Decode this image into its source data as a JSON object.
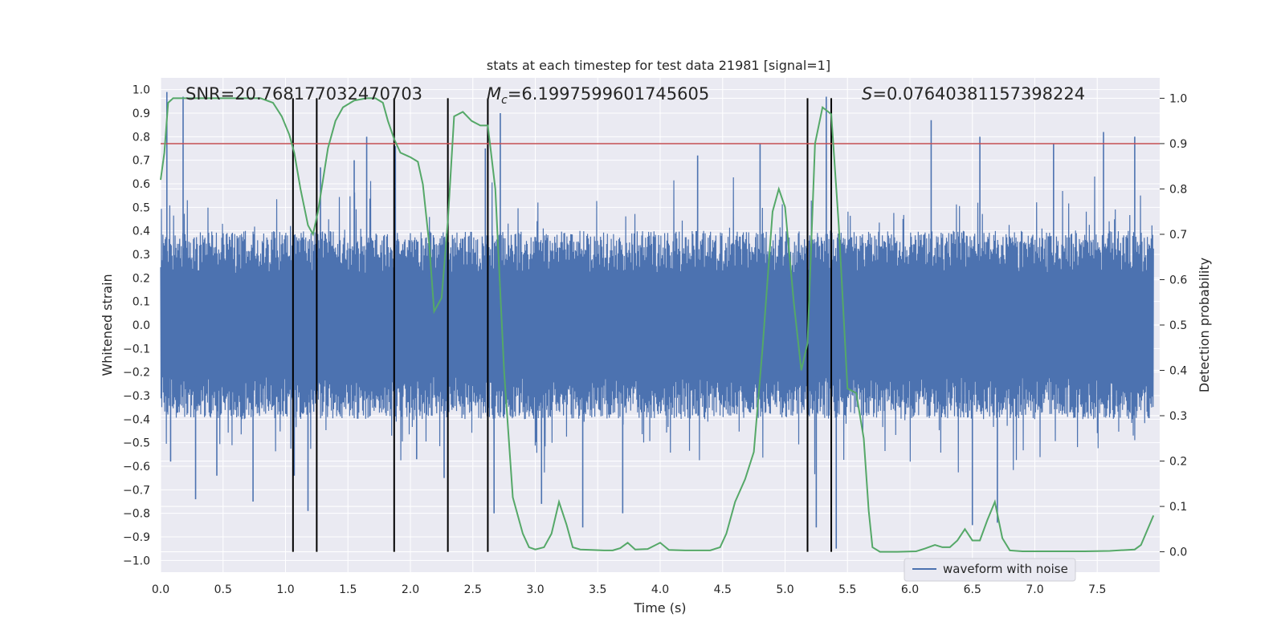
{
  "chart_data": {
    "type": "line",
    "title": "stats at each timestep for test data 21981 [signal=1]",
    "xlabel": "Time (s)",
    "ylabel": "Whitened strain",
    "y2label": "Detection probability",
    "xlim": [
      0,
      8
    ],
    "ylim": [
      -1.05,
      1.05
    ],
    "y2lim": [
      -0.045,
      1.045
    ],
    "xticks": [
      "0.0",
      "0.5",
      "1.0",
      "1.5",
      "2.0",
      "2.5",
      "3.0",
      "3.5",
      "4.0",
      "4.5",
      "5.0",
      "5.5",
      "6.0",
      "6.5",
      "7.0",
      "7.5"
    ],
    "yticks": [
      "1.0",
      "0.9",
      "0.8",
      "0.7",
      "0.6",
      "0.5",
      "0.4",
      "0.3",
      "0.2",
      "0.1",
      "0.0",
      "−0.1",
      "−0.2",
      "−0.3",
      "−0.4",
      "−0.5",
      "−0.6",
      "−0.7",
      "−0.8",
      "−0.9",
      "−1.0"
    ],
    "y2ticks": [
      "1.0",
      "0.9",
      "0.8",
      "0.7",
      "0.6",
      "0.5",
      "0.4",
      "0.3",
      "0.2",
      "0.1",
      "0.0"
    ],
    "annotations": {
      "snr": "SNR=20.768177032470703",
      "mc_symbol": "M",
      "mc_sub": "c",
      "mc_value": "=6.1997599601745605",
      "s_symbol": "S",
      "s_value": "=0.07640381157398224"
    },
    "legend": {
      "label": "waveform with noise",
      "placement": "lower-right"
    },
    "grid": true,
    "threshold_probability": 0.9,
    "vertical_lines_x": [
      1.06,
      1.25,
      1.87,
      2.3,
      2.62,
      5.18,
      5.37
    ],
    "series": [
      {
        "name": "waveform with noise",
        "color": "#4c72b0",
        "axis": "left",
        "duration": 7.95,
        "band": 0.4,
        "spikes": [
          [
            0.05,
            0.99
          ],
          [
            0.08,
            -0.58
          ],
          [
            0.18,
            0.97
          ],
          [
            0.28,
            -0.74
          ],
          [
            0.45,
            -0.64
          ],
          [
            0.74,
            -0.75
          ],
          [
            1.07,
            -0.64
          ],
          [
            1.18,
            -0.79
          ],
          [
            1.28,
            0.67
          ],
          [
            1.55,
            0.7
          ],
          [
            1.65,
            0.8
          ],
          [
            1.87,
            -0.93
          ],
          [
            1.88,
            0.76
          ],
          [
            2.05,
            -0.57
          ],
          [
            2.27,
            -0.65
          ],
          [
            2.6,
            0.75
          ],
          [
            2.67,
            -0.8
          ],
          [
            2.72,
            0.9
          ],
          [
            3.05,
            -0.76
          ],
          [
            3.38,
            -0.86
          ],
          [
            3.7,
            -0.8
          ],
          [
            4.3,
            0.72
          ],
          [
            4.8,
            0.77
          ],
          [
            5.25,
            -0.86
          ],
          [
            5.33,
            0.97
          ],
          [
            5.41,
            -0.95
          ],
          [
            6.17,
            0.87
          ],
          [
            6.5,
            -0.85
          ],
          [
            6.56,
            0.8
          ],
          [
            6.7,
            -0.84
          ],
          [
            7.15,
            0.77
          ],
          [
            7.55,
            0.82
          ],
          [
            7.8,
            0.8
          ]
        ]
      },
      {
        "name": "",
        "color": "#55a868",
        "axis": "right",
        "points": [
          [
            0.0,
            0.82
          ],
          [
            0.03,
            0.88
          ],
          [
            0.06,
            0.99
          ],
          [
            0.1,
            1.0
          ],
          [
            0.2,
            1.0
          ],
          [
            0.3,
            1.0
          ],
          [
            0.4,
            1.0
          ],
          [
            0.5,
            1.0
          ],
          [
            0.6,
            1.0
          ],
          [
            0.7,
            1.0
          ],
          [
            0.8,
            1.0
          ],
          [
            0.9,
            0.99
          ],
          [
            0.97,
            0.96
          ],
          [
            1.03,
            0.92
          ],
          [
            1.07,
            0.88
          ],
          [
            1.12,
            0.8
          ],
          [
            1.18,
            0.72
          ],
          [
            1.22,
            0.7
          ],
          [
            1.26,
            0.75
          ],
          [
            1.3,
            0.82
          ],
          [
            1.34,
            0.89
          ],
          [
            1.4,
            0.95
          ],
          [
            1.46,
            0.98
          ],
          [
            1.55,
            0.995
          ],
          [
            1.65,
            1.0
          ],
          [
            1.72,
            1.0
          ],
          [
            1.78,
            0.99
          ],
          [
            1.82,
            0.95
          ],
          [
            1.87,
            0.91
          ],
          [
            1.92,
            0.88
          ],
          [
            2.0,
            0.87
          ],
          [
            2.06,
            0.86
          ],
          [
            2.1,
            0.81
          ],
          [
            2.15,
            0.68
          ],
          [
            2.19,
            0.53
          ],
          [
            2.25,
            0.56
          ],
          [
            2.3,
            0.73
          ],
          [
            2.35,
            0.96
          ],
          [
            2.42,
            0.97
          ],
          [
            2.49,
            0.95
          ],
          [
            2.56,
            0.94
          ],
          [
            2.62,
            0.94
          ],
          [
            2.68,
            0.8
          ],
          [
            2.75,
            0.4
          ],
          [
            2.82,
            0.12
          ],
          [
            2.9,
            0.04
          ],
          [
            2.95,
            0.01
          ],
          [
            3.0,
            0.005
          ],
          [
            3.07,
            0.01
          ],
          [
            3.13,
            0.04
          ],
          [
            3.19,
            0.11
          ],
          [
            3.25,
            0.06
          ],
          [
            3.3,
            0.01
          ],
          [
            3.36,
            0.005
          ],
          [
            3.45,
            0.004
          ],
          [
            3.55,
            0.003
          ],
          [
            3.62,
            0.003
          ],
          [
            3.68,
            0.008
          ],
          [
            3.74,
            0.02
          ],
          [
            3.8,
            0.005
          ],
          [
            3.9,
            0.006
          ],
          [
            4.0,
            0.02
          ],
          [
            4.07,
            0.004
          ],
          [
            4.2,
            0.003
          ],
          [
            4.4,
            0.003
          ],
          [
            4.48,
            0.01
          ],
          [
            4.53,
            0.04
          ],
          [
            4.6,
            0.11
          ],
          [
            4.68,
            0.16
          ],
          [
            4.75,
            0.22
          ],
          [
            4.82,
            0.45
          ],
          [
            4.9,
            0.75
          ],
          [
            4.95,
            0.8
          ],
          [
            5.0,
            0.76
          ],
          [
            5.07,
            0.55
          ],
          [
            5.13,
            0.4
          ],
          [
            5.18,
            0.46
          ],
          [
            5.24,
            0.9
          ],
          [
            5.3,
            0.98
          ],
          [
            5.37,
            0.965
          ],
          [
            5.43,
            0.72
          ],
          [
            5.5,
            0.36
          ],
          [
            5.57,
            0.35
          ],
          [
            5.63,
            0.25
          ],
          [
            5.67,
            0.09
          ],
          [
            5.7,
            0.01
          ],
          [
            5.76,
            0.0
          ],
          [
            5.9,
            0.0
          ],
          [
            6.05,
            0.001
          ],
          [
            6.12,
            0.007
          ],
          [
            6.2,
            0.015
          ],
          [
            6.26,
            0.01
          ],
          [
            6.32,
            0.01
          ],
          [
            6.38,
            0.025
          ],
          [
            6.44,
            0.05
          ],
          [
            6.5,
            0.025
          ],
          [
            6.56,
            0.025
          ],
          [
            6.62,
            0.07
          ],
          [
            6.68,
            0.11
          ],
          [
            6.74,
            0.03
          ],
          [
            6.8,
            0.003
          ],
          [
            6.9,
            0.001
          ],
          [
            7.1,
            0.001
          ],
          [
            7.4,
            0.001
          ],
          [
            7.6,
            0.002
          ],
          [
            7.8,
            0.005
          ],
          [
            7.85,
            0.015
          ],
          [
            7.95,
            0.08
          ]
        ]
      }
    ]
  }
}
